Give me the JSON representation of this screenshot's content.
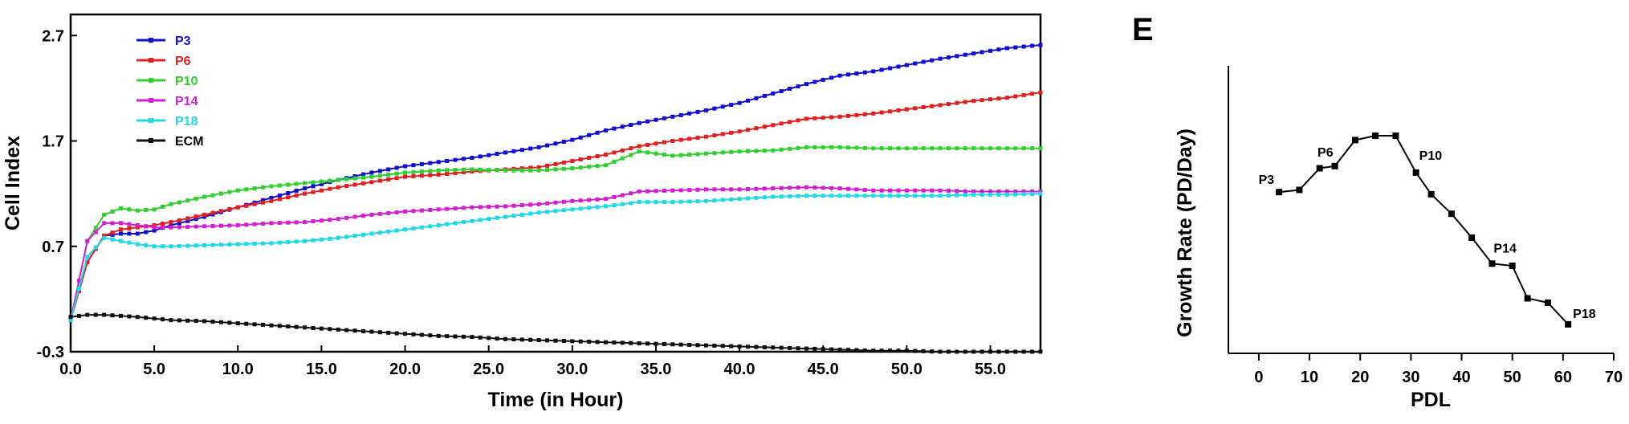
{
  "panel_label": "E",
  "chart_data": [
    {
      "type": "line",
      "title": "",
      "xlabel": "Time (in Hour)",
      "ylabel": "Cell Index",
      "xlim": [
        0,
        58
      ],
      "ylim": [
        -0.3,
        2.9
      ],
      "x_ticks": [
        "0.0",
        "5.0",
        "10.0",
        "15.0",
        "20.0",
        "25.0",
        "30.0",
        "35.0",
        "40.0",
        "45.0",
        "50.0",
        "55.0"
      ],
      "y_ticks": [
        "-0.3",
        "0.7",
        "1.7",
        "2.7"
      ],
      "legend_position": "top-left",
      "grid": false,
      "series": [
        {
          "name": "P3",
          "color": "#1010d0",
          "points": [
            [
              0,
              0.0
            ],
            [
              1,
              0.55
            ],
            [
              2,
              0.8
            ],
            [
              3,
              0.82
            ],
            [
              4,
              0.82
            ],
            [
              5,
              0.85
            ],
            [
              6,
              0.9
            ],
            [
              8,
              0.98
            ],
            [
              10,
              1.07
            ],
            [
              12,
              1.16
            ],
            [
              14,
              1.25
            ],
            [
              16,
              1.33
            ],
            [
              18,
              1.4
            ],
            [
              20,
              1.46
            ],
            [
              22,
              1.5
            ],
            [
              24,
              1.54
            ],
            [
              26,
              1.59
            ],
            [
              28,
              1.64
            ],
            [
              30,
              1.71
            ],
            [
              32,
              1.8
            ],
            [
              34,
              1.87
            ],
            [
              36,
              1.93
            ],
            [
              38,
              1.99
            ],
            [
              40,
              2.06
            ],
            [
              42,
              2.15
            ],
            [
              44,
              2.24
            ],
            [
              46,
              2.32
            ],
            [
              48,
              2.36
            ],
            [
              50,
              2.42
            ],
            [
              52,
              2.48
            ],
            [
              54,
              2.53
            ],
            [
              56,
              2.58
            ],
            [
              58,
              2.61
            ]
          ]
        },
        {
          "name": "P6",
          "color": "#e02020",
          "points": [
            [
              0,
              0.0
            ],
            [
              1,
              0.55
            ],
            [
              2,
              0.8
            ],
            [
              3,
              0.86
            ],
            [
              4,
              0.88
            ],
            [
              5,
              0.9
            ],
            [
              6,
              0.93
            ],
            [
              8,
              1.0
            ],
            [
              10,
              1.07
            ],
            [
              12,
              1.13
            ],
            [
              14,
              1.2
            ],
            [
              16,
              1.26
            ],
            [
              18,
              1.31
            ],
            [
              20,
              1.36
            ],
            [
              22,
              1.38
            ],
            [
              24,
              1.41
            ],
            [
              26,
              1.43
            ],
            [
              28,
              1.45
            ],
            [
              30,
              1.51
            ],
            [
              32,
              1.57
            ],
            [
              34,
              1.65
            ],
            [
              36,
              1.7
            ],
            [
              38,
              1.74
            ],
            [
              40,
              1.79
            ],
            [
              42,
              1.85
            ],
            [
              44,
              1.91
            ],
            [
              46,
              1.93
            ],
            [
              48,
              1.96
            ],
            [
              50,
              2.0
            ],
            [
              52,
              2.04
            ],
            [
              54,
              2.08
            ],
            [
              56,
              2.11
            ],
            [
              58,
              2.16
            ]
          ]
        },
        {
          "name": "P10",
          "color": "#30d030",
          "points": [
            [
              0,
              0.0
            ],
            [
              1,
              0.75
            ],
            [
              2,
              1.0
            ],
            [
              3,
              1.06
            ],
            [
              4,
              1.04
            ],
            [
              5,
              1.05
            ],
            [
              6,
              1.1
            ],
            [
              8,
              1.17
            ],
            [
              10,
              1.23
            ],
            [
              12,
              1.27
            ],
            [
              14,
              1.3
            ],
            [
              16,
              1.33
            ],
            [
              18,
              1.36
            ],
            [
              20,
              1.4
            ],
            [
              22,
              1.42
            ],
            [
              24,
              1.43
            ],
            [
              26,
              1.42
            ],
            [
              28,
              1.42
            ],
            [
              30,
              1.44
            ],
            [
              32,
              1.47
            ],
            [
              34,
              1.6
            ],
            [
              36,
              1.56
            ],
            [
              38,
              1.58
            ],
            [
              40,
              1.6
            ],
            [
              42,
              1.61
            ],
            [
              44,
              1.64
            ],
            [
              46,
              1.64
            ],
            [
              48,
              1.63
            ],
            [
              50,
              1.63
            ],
            [
              52,
              1.63
            ],
            [
              54,
              1.63
            ],
            [
              56,
              1.63
            ],
            [
              58,
              1.63
            ]
          ]
        },
        {
          "name": "P14",
          "color": "#d020d0",
          "points": [
            [
              0,
              0.0
            ],
            [
              1,
              0.75
            ],
            [
              2,
              0.92
            ],
            [
              3,
              0.92
            ],
            [
              4,
              0.9
            ],
            [
              5,
              0.88
            ],
            [
              6,
              0.88
            ],
            [
              8,
              0.89
            ],
            [
              10,
              0.9
            ],
            [
              12,
              0.92
            ],
            [
              14,
              0.93
            ],
            [
              16,
              0.96
            ],
            [
              18,
              1.0
            ],
            [
              20,
              1.03
            ],
            [
              22,
              1.05
            ],
            [
              24,
              1.07
            ],
            [
              26,
              1.08
            ],
            [
              28,
              1.1
            ],
            [
              30,
              1.13
            ],
            [
              32,
              1.15
            ],
            [
              34,
              1.22
            ],
            [
              36,
              1.23
            ],
            [
              38,
              1.24
            ],
            [
              40,
              1.24
            ],
            [
              42,
              1.25
            ],
            [
              44,
              1.26
            ],
            [
              46,
              1.25
            ],
            [
              48,
              1.23
            ],
            [
              50,
              1.23
            ],
            [
              52,
              1.23
            ],
            [
              54,
              1.22
            ],
            [
              56,
              1.22
            ],
            [
              58,
              1.22
            ]
          ]
        },
        {
          "name": "P18",
          "color": "#20d8e8",
          "points": [
            [
              0,
              0.0
            ],
            [
              1,
              0.6
            ],
            [
              2,
              0.78
            ],
            [
              3,
              0.75
            ],
            [
              4,
              0.72
            ],
            [
              5,
              0.7
            ],
            [
              6,
              0.7
            ],
            [
              8,
              0.71
            ],
            [
              10,
              0.72
            ],
            [
              12,
              0.73
            ],
            [
              14,
              0.75
            ],
            [
              16,
              0.78
            ],
            [
              18,
              0.82
            ],
            [
              20,
              0.86
            ],
            [
              22,
              0.9
            ],
            [
              24,
              0.94
            ],
            [
              26,
              0.98
            ],
            [
              28,
              1.02
            ],
            [
              30,
              1.05
            ],
            [
              32,
              1.08
            ],
            [
              34,
              1.12
            ],
            [
              36,
              1.12
            ],
            [
              38,
              1.13
            ],
            [
              40,
              1.15
            ],
            [
              42,
              1.17
            ],
            [
              44,
              1.18
            ],
            [
              46,
              1.18
            ],
            [
              48,
              1.18
            ],
            [
              50,
              1.18
            ],
            [
              52,
              1.18
            ],
            [
              54,
              1.19
            ],
            [
              56,
              1.19
            ],
            [
              58,
              1.2
            ]
          ]
        },
        {
          "name": "ECM",
          "color": "#101010",
          "points": [
            [
              0,
              0.03
            ],
            [
              1,
              0.05
            ],
            [
              2,
              0.05
            ],
            [
              3,
              0.04
            ],
            [
              4,
              0.03
            ],
            [
              6,
              0.0
            ],
            [
              8,
              -0.01
            ],
            [
              10,
              -0.03
            ],
            [
              12,
              -0.05
            ],
            [
              14,
              -0.07
            ],
            [
              16,
              -0.09
            ],
            [
              18,
              -0.11
            ],
            [
              20,
              -0.13
            ],
            [
              22,
              -0.15
            ],
            [
              24,
              -0.16
            ],
            [
              26,
              -0.18
            ],
            [
              28,
              -0.19
            ],
            [
              30,
              -0.2
            ],
            [
              32,
              -0.21
            ],
            [
              34,
              -0.22
            ],
            [
              36,
              -0.23
            ],
            [
              38,
              -0.24
            ],
            [
              40,
              -0.25
            ],
            [
              42,
              -0.26
            ],
            [
              44,
              -0.27
            ],
            [
              46,
              -0.28
            ],
            [
              48,
              -0.29
            ],
            [
              50,
              -0.29
            ],
            [
              52,
              -0.3
            ],
            [
              54,
              -0.3
            ],
            [
              56,
              -0.3
            ],
            [
              58,
              -0.3
            ]
          ]
        }
      ]
    },
    {
      "type": "line",
      "title": "",
      "xlabel": "PDL",
      "ylabel": "Growth Rate (PD/Day)",
      "xlim": [
        -6,
        70
      ],
      "ylim": [
        0,
        100
      ],
      "x_ticks": [
        "0",
        "10",
        "20",
        "30",
        "40",
        "50",
        "60",
        "70"
      ],
      "y_ticks_shown": false,
      "grid": false,
      "series": [
        {
          "name": "",
          "color": "#000000",
          "points": [
            [
              4,
              64
            ],
            [
              8,
              65
            ],
            [
              12,
              75
            ],
            [
              15,
              76
            ],
            [
              19,
              88
            ],
            [
              23,
              90
            ],
            [
              27,
              90
            ],
            [
              31,
              73
            ],
            [
              34,
              63
            ],
            [
              38,
              54
            ],
            [
              42,
              43
            ],
            [
              46,
              31
            ],
            [
              50,
              30
            ],
            [
              53,
              15
            ],
            [
              57,
              13
            ],
            [
              61,
              3
            ]
          ],
          "labels": [
            {
              "x": 4,
              "y": 64,
              "text": "P3"
            },
            {
              "x": 15,
              "y": 76,
              "text": "P6"
            },
            {
              "x": 31,
              "y": 73,
              "text": "P10"
            },
            {
              "x": 46,
              "y": 31,
              "text": "P14"
            },
            {
              "x": 61,
              "y": 3,
              "text": "P18"
            }
          ]
        }
      ]
    }
  ]
}
